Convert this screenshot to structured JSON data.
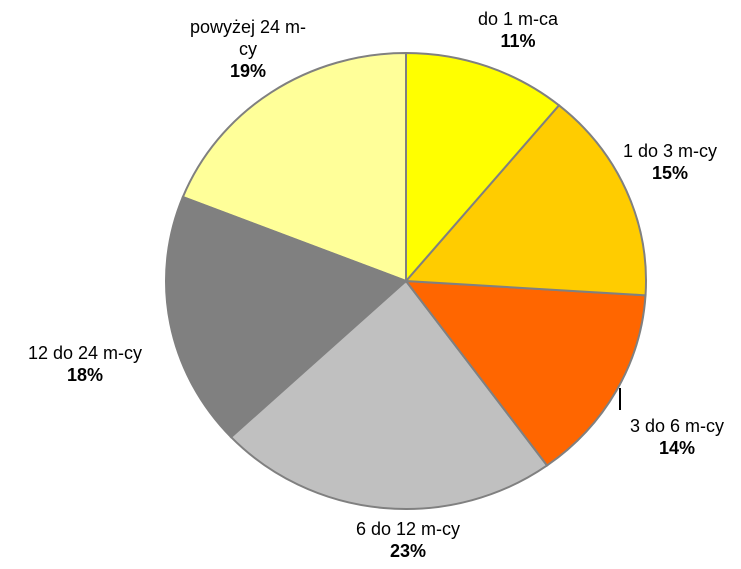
{
  "chart_data": {
    "type": "pie",
    "categories": [
      "do 1 m-ca",
      "1 do 3 m-cy",
      "3 do 6 m-cy",
      "6 do 12 m-cy",
      "12 do 24 m-cy",
      "powyżej 24 m-cy"
    ],
    "values": [
      11,
      15,
      14,
      23,
      18,
      19
    ],
    "value_labels": [
      "11%",
      "15%",
      "14%",
      "23%",
      "18%",
      "19%"
    ],
    "colors": [
      "#ffff00",
      "#ffcc00",
      "#ff6600",
      "#c0c0c0",
      "#808080",
      "#ffff99"
    ]
  }
}
